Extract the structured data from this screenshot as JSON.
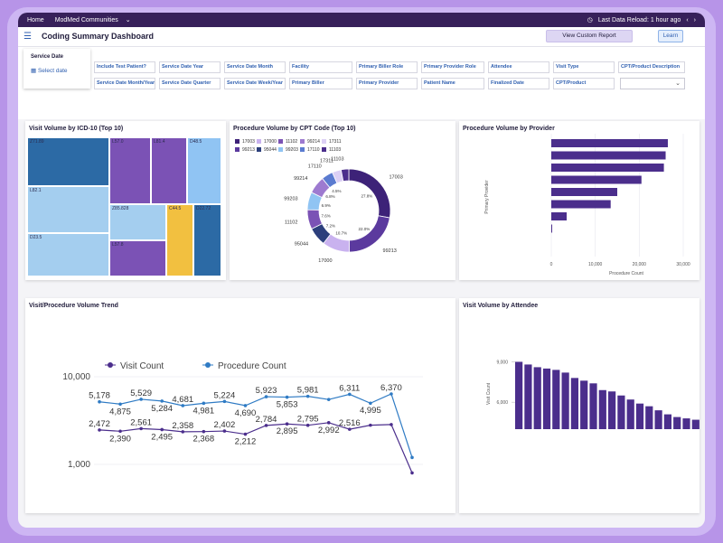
{
  "topbar": {
    "home": "Home",
    "communities": "ModMed Communities",
    "last_reload": "Last Data Reload: 1 hour ago"
  },
  "header": {
    "title": "Coding Summary Dashboard",
    "view_report": "View Custom Report",
    "learn": "Learn"
  },
  "filters": {
    "service_date_label": "Service Date",
    "service_date_value": "Select date",
    "row1": [
      "Include Test Patient?",
      "Service Date Year",
      "Service Date Month",
      "Facility",
      "Primary Biller Role",
      "Primary Provider Role",
      "Attendee",
      "Visit Type",
      "CPT/Product Description"
    ],
    "row2": [
      "Service Date Month/Year",
      "Service Date Quarter",
      "Service Date Week/Year",
      "Primary Biller",
      "Primary Provider",
      "Patient Name",
      "Finalized Date",
      "CPT/Product"
    ]
  },
  "panels": {
    "icd": "Visit Volume by ICD-10 (Top 10)",
    "cpt": "Procedure Volume by CPT Code (Top 10)",
    "provider": "Procedure Volume by Provider",
    "trend": "Visit/Procedure Volume Trend",
    "attendee": "Visit Volume by Attendee"
  },
  "icd_treemap": [
    {
      "code": "Z71.89",
      "color": "#2c6aa5"
    },
    {
      "code": "L57.0",
      "color": "#7b52b5"
    },
    {
      "code": "L81.4",
      "color": "#7b52b5"
    },
    {
      "code": "D48.5",
      "color": "#90c4f3"
    },
    {
      "code": "L82.1",
      "color": "#a4ceef"
    },
    {
      "code": "Z85.828",
      "color": "#a4ceef"
    },
    {
      "code": "C44.5",
      "color": "#f2c040"
    },
    {
      "code": "D22.72",
      "color": "#2c6aa5"
    },
    {
      "code": "D23.5",
      "color": "#a4ceef"
    },
    {
      "code": "L57.8",
      "color": "#7b52b5"
    }
  ],
  "cpt_legend": [
    {
      "code": "17003",
      "color": "#3d2278"
    },
    {
      "code": "17000",
      "color": "#c9b2ef"
    },
    {
      "code": "11102",
      "color": "#7b52b5"
    },
    {
      "code": "99214",
      "color": "#9d7ad0"
    },
    {
      "code": "17311",
      "color": "#dcd0f5"
    },
    {
      "code": "99213",
      "color": "#5b3a9e"
    },
    {
      "code": "95044",
      "color": "#2c3f7c"
    },
    {
      "code": "99203",
      "color": "#90c4f3"
    },
    {
      "code": "17110",
      "color": "#5b7bd0"
    },
    {
      "code": "11103",
      "color": "#4b2e8c"
    }
  ],
  "chart_data": [
    {
      "type": "pie",
      "title": "Procedure Volume by CPT Code (Top 10)",
      "categories": [
        "17003",
        "99213",
        "17000",
        "95044",
        "11102",
        "99203",
        "99214",
        "17110",
        "17311",
        "11103"
      ],
      "values": [
        27.8,
        22.0,
        10.7,
        7.2,
        7.6,
        6.9,
        6.8,
        4.5,
        3.5,
        3.0
      ],
      "slice_labels": [
        "27.8%",
        "22.0%",
        "10.7%",
        "7.2%",
        "7.6%",
        "6.9%",
        "6.8%",
        "4.5%",
        "",
        ""
      ]
    },
    {
      "type": "bar",
      "title": "Procedure Volume by Provider",
      "xlabel": "Procedure Count",
      "ylabel": "Primary Provider",
      "xlim": [
        0,
        30000
      ],
      "xticks": [
        "0",
        "10,000",
        "20,000",
        "30,000"
      ],
      "values": [
        26500,
        26000,
        25600,
        20500,
        15000,
        13500,
        3500,
        200
      ]
    },
    {
      "type": "line",
      "title": "Visit/Procedure Volume Trend",
      "ylog": true,
      "yticks": [
        "1,000",
        "10,000"
      ],
      "series": [
        {
          "name": "Visit Count",
          "color": "#4b2e8c",
          "values": [
            2472,
            2390,
            2561,
            2495,
            2358,
            2368,
            2402,
            2212,
            2784,
            2895,
            2795,
            2992,
            2516,
            2800,
            2850,
            800
          ]
        },
        {
          "name": "Procedure Count",
          "color": "#2f7bc4",
          "values": [
            5178,
            4875,
            5529,
            5284,
            4681,
            4981,
            5224,
            4690,
            5923,
            5853,
            5981,
            5500,
            6311,
            4995,
            6370,
            1200
          ]
        }
      ],
      "labels": {
        "visit": [
          "2,472",
          "2,390",
          "2,561",
          "2,495",
          "2,358",
          "2,368",
          "2,402",
          "2,212",
          "2,784",
          "2,895",
          "2,795",
          "2,992",
          "2,516",
          "",
          "",
          ""
        ],
        "procedure": [
          "5,178",
          "4,875",
          "5,529",
          "5,284",
          "4,681",
          "4,981",
          "5,224",
          "4,690",
          "5,923",
          "5,853",
          "5,981",
          "",
          "6,311",
          "4,995",
          "6,370",
          ""
        ]
      }
    },
    {
      "type": "bar",
      "title": "Visit Volume by Attendee",
      "ylabel": "Visit Count",
      "yticks": [
        "6,000",
        "9,000"
      ],
      "ylim": [
        4000,
        9500
      ],
      "values": [
        9000,
        8800,
        8600,
        8500,
        8400,
        8200,
        7800,
        7600,
        7400,
        6900,
        6800,
        6500,
        6200,
        5900,
        5700,
        5400,
        5100,
        4900,
        4800,
        4700,
        4600
      ]
    }
  ]
}
